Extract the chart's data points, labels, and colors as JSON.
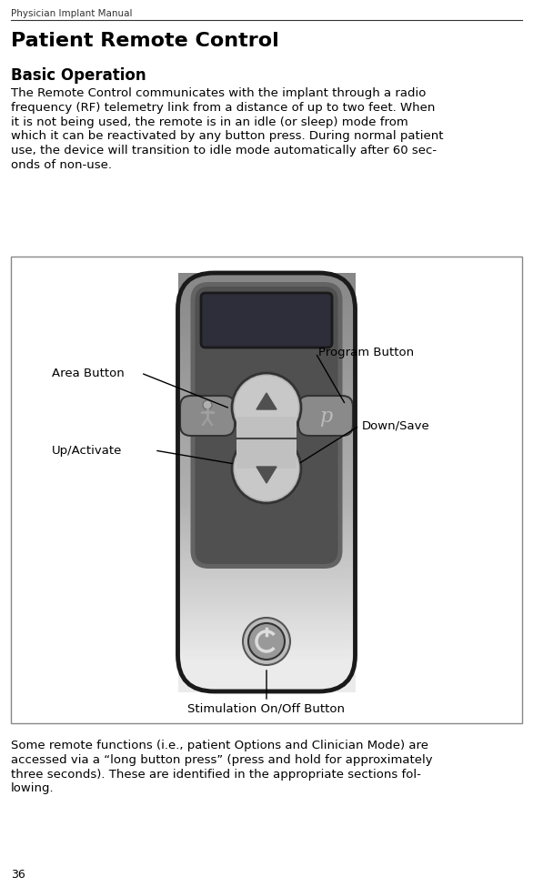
{
  "header_text": "Physician Implant Manual",
  "title": "Patient Remote Control",
  "subtitle": "Basic Operation",
  "body1_lines": [
    "The Remote Control communicates with the implant through a radio",
    "frequency (RF) telemetry link from a distance of up to two feet. When",
    "it is not being used, the remote is in an idle (or sleep) mode from",
    "which it can be reactivated by any button press. During normal patient",
    "use, the device will transition to idle mode automatically after 60 sec-",
    "onds of non-use."
  ],
  "body2_lines": [
    "Some remote functions (i.e., patient Options and Clinician Mode) are",
    "accessed via a “long button press” (press and hold for approximately",
    "three seconds). These are identified in the appropriate sections fol-",
    "lowing."
  ],
  "page_number": "36",
  "labels": {
    "area_button": "Area Button",
    "program_button": "Program Button",
    "down_save": "Down/Save",
    "up_activate": "Up/Activate",
    "stim_button": "Stimulation On/Off Button"
  },
  "bg_color": "#ffffff",
  "text_color": "#000000",
  "box_border": "#cccccc",
  "box_bg": "#ffffff",
  "remote_outer_border": "#1a1a1a",
  "remote_body_light": "#c8c8c8",
  "remote_body_dark": "#888888",
  "remote_panel_dark": "#5c5c5c",
  "remote_panel_darkest": "#404040",
  "screen_bg": "#2e2e3a",
  "screen_border": "#1a1a1a",
  "btn_face": "#a0a0a0",
  "btn_face_light": "#c0c0c0",
  "btn_border": "#404040",
  "btn_icon": "#787878",
  "rocker_face": "#b8b8b8",
  "rocker_shadow": "#6a6a6a",
  "arrow_color": "#505050",
  "pwr_ring": "#888888",
  "pwr_face": "#a8a8a8",
  "pwr_icon": "#cccccc",
  "line_color": "#111111"
}
